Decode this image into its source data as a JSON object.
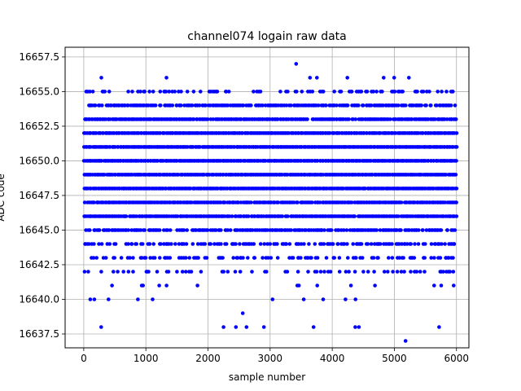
{
  "chart_data": {
    "type": "scatter",
    "title": "channel074 logain raw data",
    "xlabel": "sample number",
    "ylabel": "ADC code",
    "xlim": [
      -300,
      6200
    ],
    "ylim": [
      16636.5,
      16658.2
    ],
    "xticks": [
      0,
      1000,
      2000,
      3000,
      4000,
      5000,
      6000
    ],
    "xtick_labels": [
      "0",
      "1000",
      "2000",
      "3000",
      "4000",
      "5000",
      "6000"
    ],
    "yticks": [
      16637.5,
      16640.0,
      16642.5,
      16645.0,
      16647.5,
      16650.0,
      16652.5,
      16655.0,
      16657.5
    ],
    "ytick_labels": [
      "16637.5",
      "16640.0",
      "16642.5",
      "16645.0",
      "16647.5",
      "16650.0",
      "16652.5",
      "16655.0",
      "16657.5"
    ],
    "grid": true,
    "marker_color": "#0000ff",
    "n_samples": 6000,
    "levels": [
      {
        "y": 16657,
        "fraction": 0.005
      },
      {
        "y": 16656,
        "fraction": 0.03
      },
      {
        "y": 16655,
        "fraction": 0.3
      },
      {
        "y": 16654,
        "fraction": 0.75
      },
      {
        "y": 16653,
        "fraction": 0.95
      },
      {
        "y": 16652,
        "fraction": 1.0
      },
      {
        "y": 16651,
        "fraction": 1.0
      },
      {
        "y": 16650,
        "fraction": 1.0
      },
      {
        "y": 16649,
        "fraction": 1.0
      },
      {
        "y": 16648,
        "fraction": 1.0
      },
      {
        "y": 16647,
        "fraction": 0.95
      },
      {
        "y": 16646,
        "fraction": 0.9
      },
      {
        "y": 16645,
        "fraction": 0.7
      },
      {
        "y": 16644,
        "fraction": 0.5
      },
      {
        "y": 16643,
        "fraction": 0.35
      },
      {
        "y": 16642,
        "fraction": 0.22
      },
      {
        "y": 16641,
        "fraction": 0.05
      },
      {
        "y": 16640,
        "fraction": 0.04
      },
      {
        "y": 16639,
        "fraction": 0.005
      }
    ],
    "outliers": [
      {
        "x": 280,
        "y": 16638
      },
      {
        "x": 2250,
        "y": 16638
      },
      {
        "x": 2450,
        "y": 16638
      },
      {
        "x": 2620,
        "y": 16638
      },
      {
        "x": 2900,
        "y": 16638
      },
      {
        "x": 3700,
        "y": 16638
      },
      {
        "x": 4370,
        "y": 16638
      },
      {
        "x": 4430,
        "y": 16638
      },
      {
        "x": 5720,
        "y": 16638
      },
      {
        "x": 5180,
        "y": 16637
      }
    ]
  }
}
